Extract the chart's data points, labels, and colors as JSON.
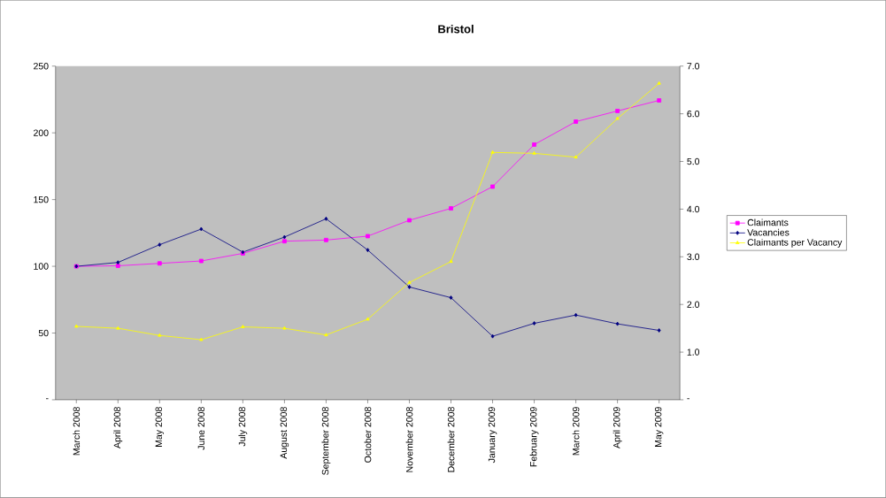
{
  "chart_data": {
    "type": "line",
    "title": "Bristol",
    "categories": [
      "March 2008",
      "April 2008",
      "May 2008",
      "June 2008",
      "July 2008",
      "August 2008",
      "September 2008",
      "October 2008",
      "November 2008",
      "December 2008",
      "January 2009",
      "February 2009",
      "March 2009",
      "April 2009",
      "May 2009"
    ],
    "series": [
      {
        "name": "Claimants",
        "color": "#ff00ff",
        "marker": "square",
        "values": [
          100,
          100.4,
          102.2,
          104,
          109.7,
          118.8,
          119.7,
          122.6,
          134.5,
          143.4,
          159.7,
          191.2,
          208.4,
          216.4,
          224.3
        ]
      },
      {
        "name": "Vacancies",
        "color": "#000080",
        "marker": "diamond",
        "values": [
          100,
          102.9,
          116.2,
          127.9,
          110.6,
          121.9,
          135.6,
          112.2,
          84.5,
          76.5,
          47.6,
          57.3,
          63.5,
          56.9,
          52.0
        ]
      },
      {
        "name": "Claimants per Vacancy",
        "color": "#ffff00",
        "marker": "triangle",
        "axis": "y2",
        "values": [
          1.54,
          1.5,
          1.35,
          1.26,
          1.53,
          1.5,
          1.36,
          1.69,
          2.46,
          2.9,
          5.19,
          5.17,
          5.09,
          5.9,
          6.64
        ]
      }
    ],
    "ylim": [
      0,
      250
    ],
    "yticks": [
      {
        "value": 0,
        "label": "-"
      },
      50,
      100,
      150,
      200,
      250
    ],
    "y2lim": [
      0,
      7
    ],
    "y2ticks": [
      {
        "value": 0,
        "label": "-"
      },
      {
        "value": 1,
        "label": "1.0"
      },
      {
        "value": 2,
        "label": "2.0"
      },
      {
        "value": 3,
        "label": "3.0"
      },
      {
        "value": 4,
        "label": "4.0"
      },
      {
        "value": 5,
        "label": "5.0"
      },
      {
        "value": 6,
        "label": "6.0"
      },
      {
        "value": 7,
        "label": "7.0"
      }
    ],
    "legend": "right",
    "grid": false
  }
}
